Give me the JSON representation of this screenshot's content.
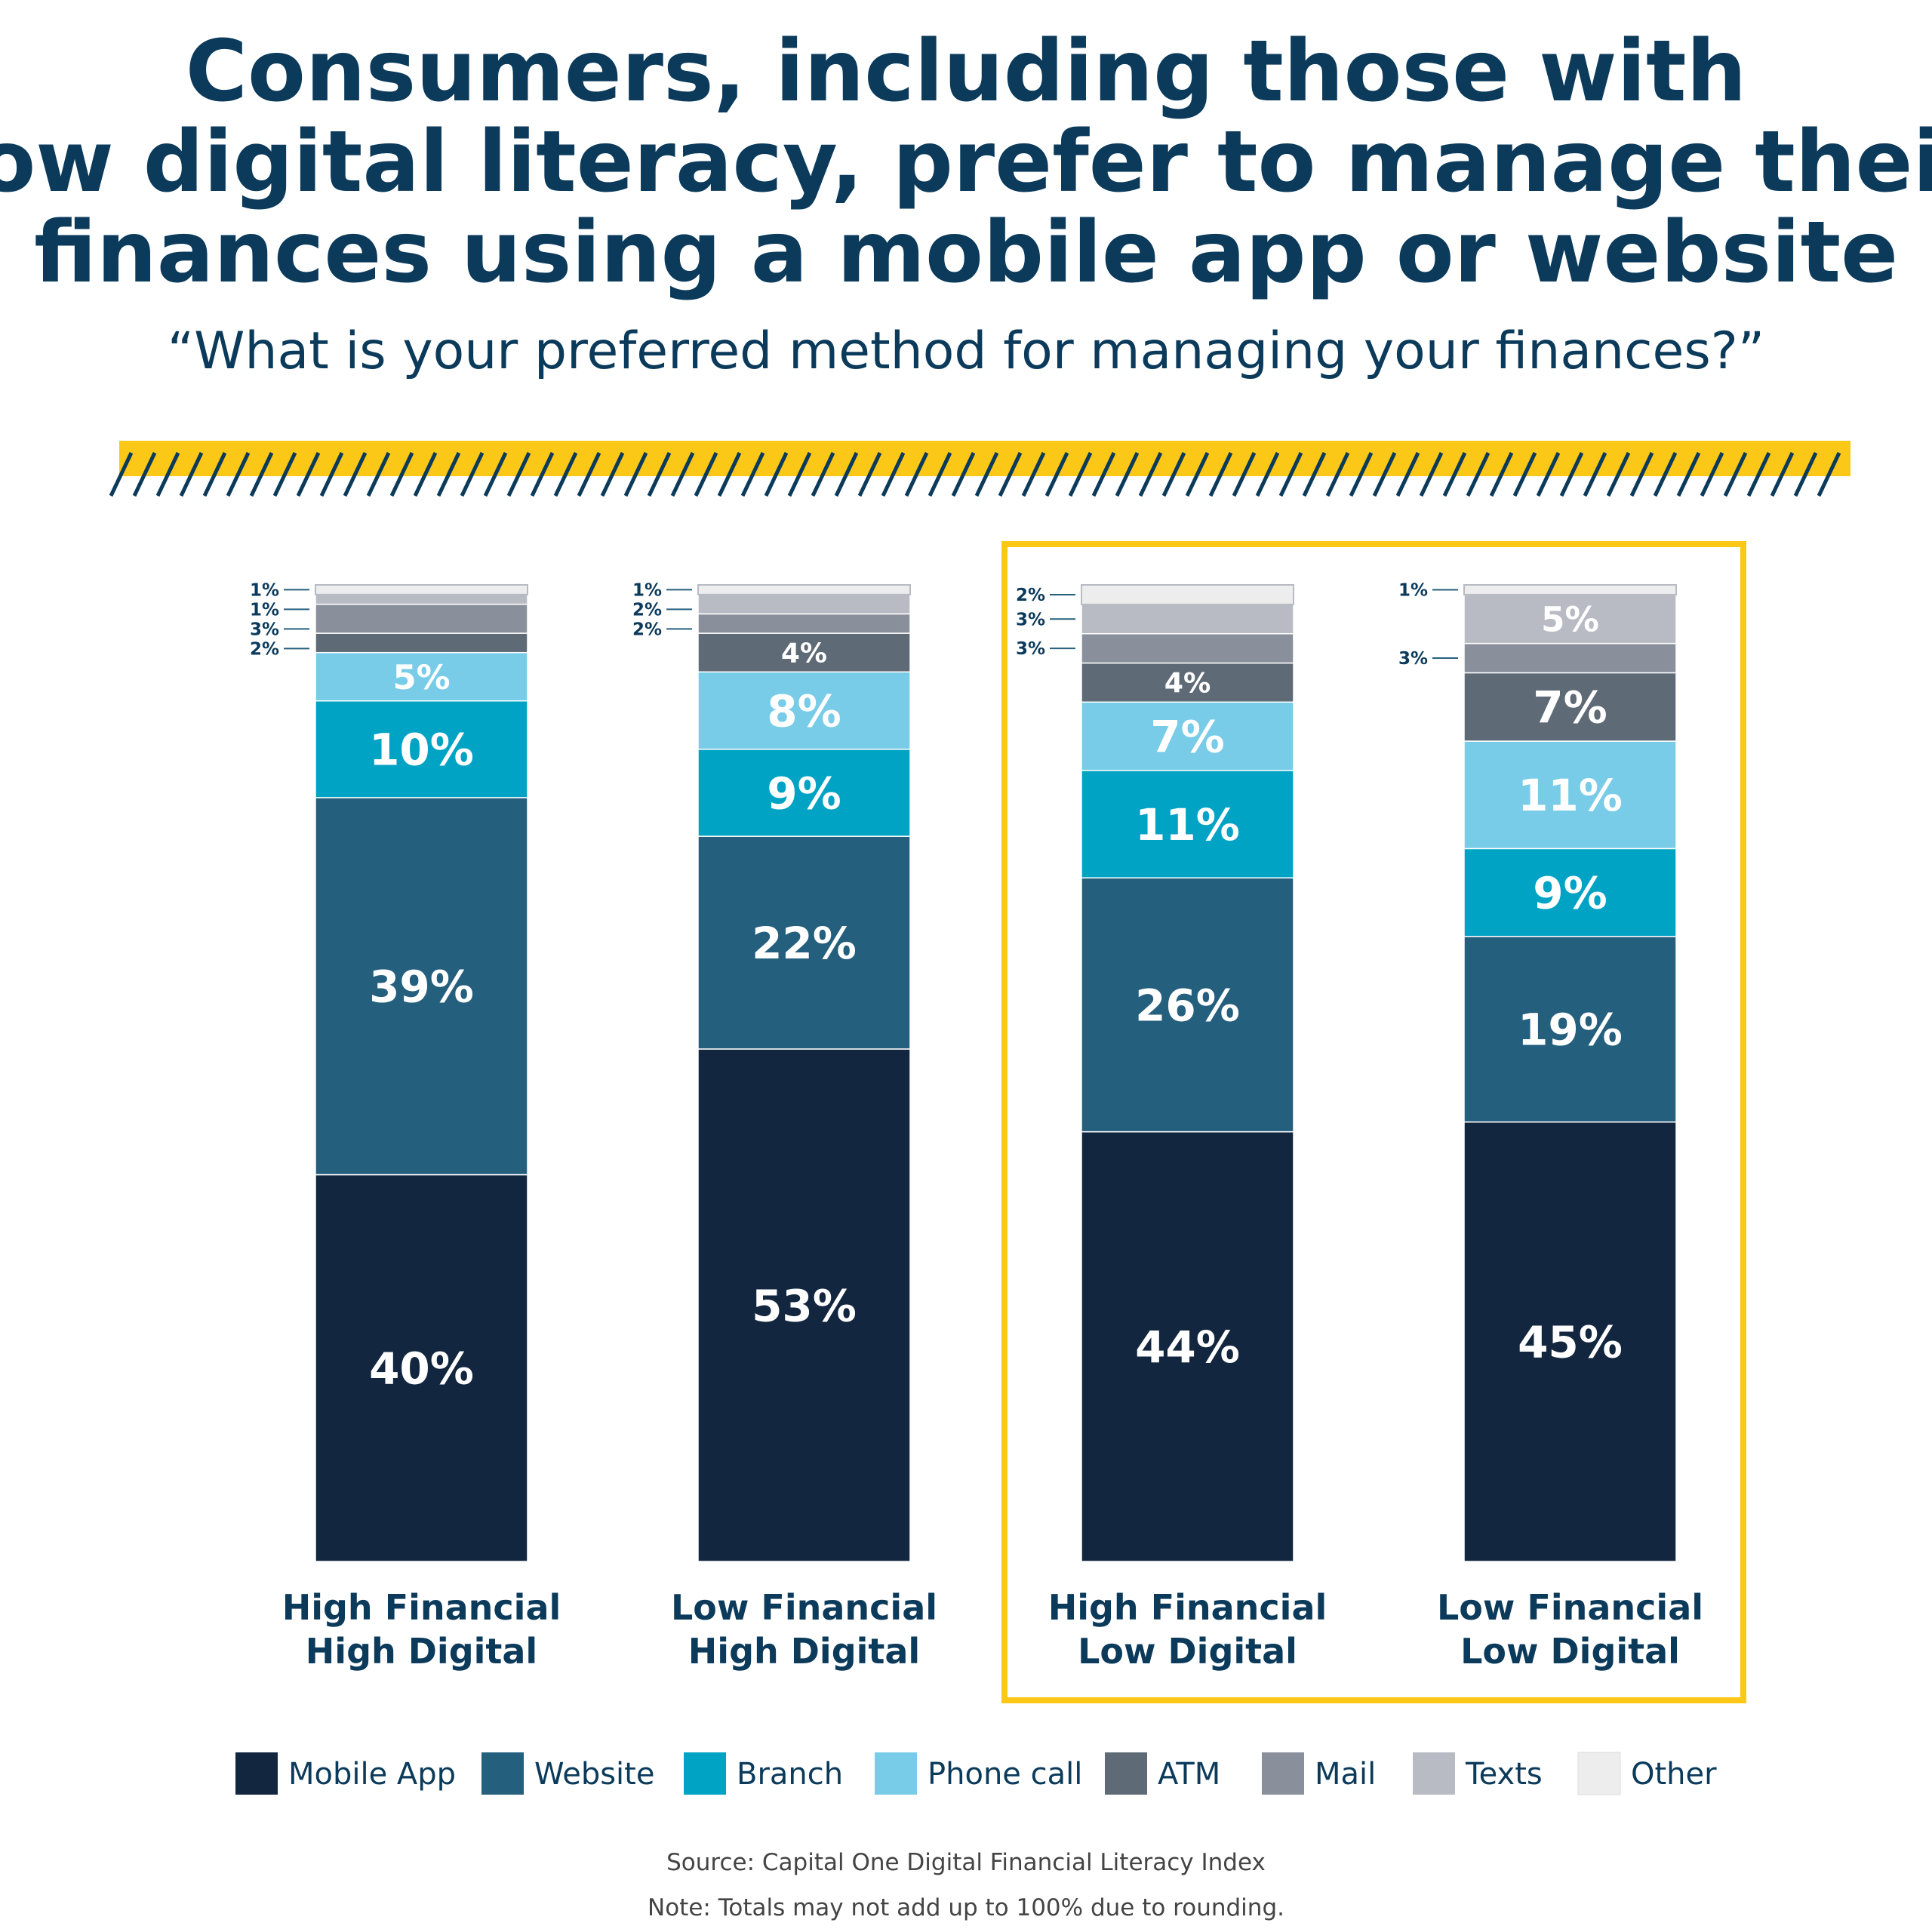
{
  "header": {
    "title_lines": [
      "Consumers, including those with",
      "low digital literacy, prefer to manage their",
      "finances using a mobile app or website"
    ],
    "subtitle": "“What is your preferred method for managing your finances?”"
  },
  "colors": {
    "title": "#0b3a5b",
    "accent_yellow": "#fcc817",
    "Mobile App": "#12263f",
    "Website": "#255f7e",
    "Branch": "#00a3c4",
    "Phone call": "#78cce8",
    "ATM": "#5f6a77",
    "Mail": "#8a909b",
    "Texts": "#b8bbc4",
    "Other": "#ededee"
  },
  "chart_data": {
    "type": "bar",
    "stacked": true,
    "unit": "%",
    "categories": [
      [
        "High Financial",
        "High Digital"
      ],
      [
        "Low Financial",
        "High Digital"
      ],
      [
        "High Financial",
        "Low Digital"
      ],
      [
        "Low Financial",
        "Low Digital"
      ]
    ],
    "highlighted_categories": [
      2,
      3
    ],
    "series": [
      {
        "name": "Mobile App",
        "values": [
          40,
          53,
          44,
          45
        ]
      },
      {
        "name": "Website",
        "values": [
          39,
          22,
          26,
          19
        ]
      },
      {
        "name": "Branch",
        "values": [
          10,
          9,
          11,
          9
        ]
      },
      {
        "name": "Phone call",
        "values": [
          5,
          8,
          7,
          11
        ]
      },
      {
        "name": "ATM",
        "values": [
          2,
          4,
          4,
          7
        ]
      },
      {
        "name": "Mail",
        "values": [
          3,
          2,
          3,
          3
        ]
      },
      {
        "name": "Texts",
        "values": [
          1,
          2,
          3,
          5
        ]
      },
      {
        "name": "Other",
        "values": [
          1,
          1,
          2,
          1
        ]
      }
    ],
    "legend_position": "bottom",
    "grid": false
  },
  "footer": {
    "source": "Source: Capital One Digital Financial Literacy Index",
    "note": "Note: Totals may not add up to 100% due to rounding."
  }
}
